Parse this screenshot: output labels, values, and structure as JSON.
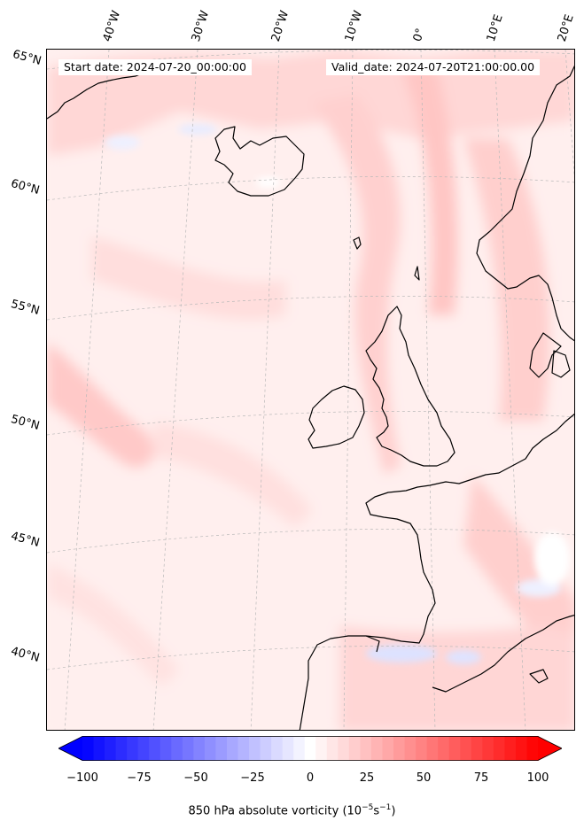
{
  "header": {
    "start_date": "Start date: 2024-07-20_00:00:00",
    "valid_date": "Valid_date: 2024-07-20T21:00:00.00"
  },
  "longitude_labels": [
    "40°W",
    "30°W",
    "20°W",
    "10°W",
    "0°",
    "10°E",
    "20°E"
  ],
  "latitude_labels": [
    "65°N",
    "60°N",
    "55°N",
    "50°N",
    "45°N",
    "40°N"
  ],
  "colorbar": {
    "ticks": [
      "−100",
      "−75",
      "−50",
      "−25",
      "0",
      "25",
      "50",
      "75",
      "100"
    ],
    "min": -100,
    "max": 100,
    "levels": 41,
    "low_color": "#0000ff",
    "mid_color": "#ffffff",
    "high_color": "#ff0000",
    "label_prefix": "850 hPa absolute vorticity (10",
    "label_exp1": "−5",
    "label_mid": "s",
    "label_exp2": "−1",
    "label_suffix": ")"
  },
  "colors": {
    "background_field": "#fff0ef",
    "coastline": "#000000",
    "gridline": "#b8b8b8"
  }
}
